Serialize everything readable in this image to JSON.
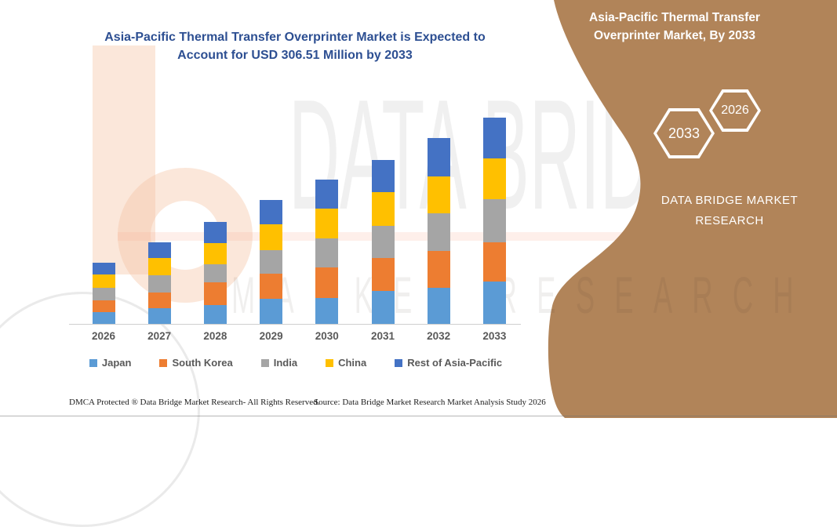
{
  "colors": {
    "title_blue": "#2d4f92",
    "panel_tan": "#B18459",
    "axis_line": "#cfcfcf",
    "label_gray": "#595959"
  },
  "main_title": {
    "line1": "Asia-Pacific Thermal Transfer Overprinter Market is Expected to",
    "line2": "Account for USD 306.51 Million by 2033"
  },
  "watermark": {
    "big_text": "DATA BRIDGE",
    "sub_text": "MARKET RESEARCH"
  },
  "chart_data": {
    "type": "bar",
    "stacked": true,
    "title": "Asia-Pacific Thermal Transfer Overprinter Market (USD Million)",
    "xlabel": "",
    "ylabel": "",
    "unit": "USD Million",
    "ylim": [
      0,
      320
    ],
    "grid": false,
    "legend_position": "bottom",
    "categories": [
      "2026",
      "2027",
      "2028",
      "2029",
      "2030",
      "2031",
      "2032",
      "2033"
    ],
    "series": [
      {
        "name": "Japan",
        "color": "#5B9BD5",
        "values": [
          17.5,
          23.3,
          28.0,
          37.3,
          38.2,
          49.4,
          53.2,
          63.5
        ]
      },
      {
        "name": "South Korea",
        "color": "#ED7D31",
        "values": [
          18.0,
          23.3,
          33.8,
          37.8,
          45.5,
          48.7,
          55.7,
          57.2
        ]
      },
      {
        "name": "India",
        "color": "#A5A5A5",
        "values": [
          18.2,
          26.0,
          27.2,
          34.2,
          43.2,
          47.4,
          56.0,
          64.2
        ]
      },
      {
        "name": "China",
        "color": "#FFC000",
        "values": [
          20.3,
          24.9,
          31.2,
          38.9,
          44.3,
          49.8,
          54.5,
          61.4
        ]
      },
      {
        "name": "Rest of Asia-Pacific",
        "color": "#4472C4",
        "values": [
          17.0,
          23.8,
          31.0,
          35.8,
          42.8,
          48.7,
          56.4,
          60.3
        ]
      }
    ],
    "totals": [
      91.0,
      121.3,
      151.2,
      184.0,
      214.0,
      244.0,
      275.8,
      306.5
    ]
  },
  "side_panel": {
    "bg": "#B18459",
    "title_line1": "Asia-Pacific Thermal Transfer",
    "title_line2": "Overprinter Market, By 2033",
    "hex_back_label": "2026",
    "hex_front_label": "2033",
    "brand_line1": "DATA BRIDGE MARKET",
    "brand_line2": "RESEARCH"
  },
  "footer": {
    "left": "DMCA Protected ® Data Bridge Market Research-  All Rights Reserved.",
    "right": "Source: Data Bridge Market Research  Market Analysis Study 2026"
  }
}
